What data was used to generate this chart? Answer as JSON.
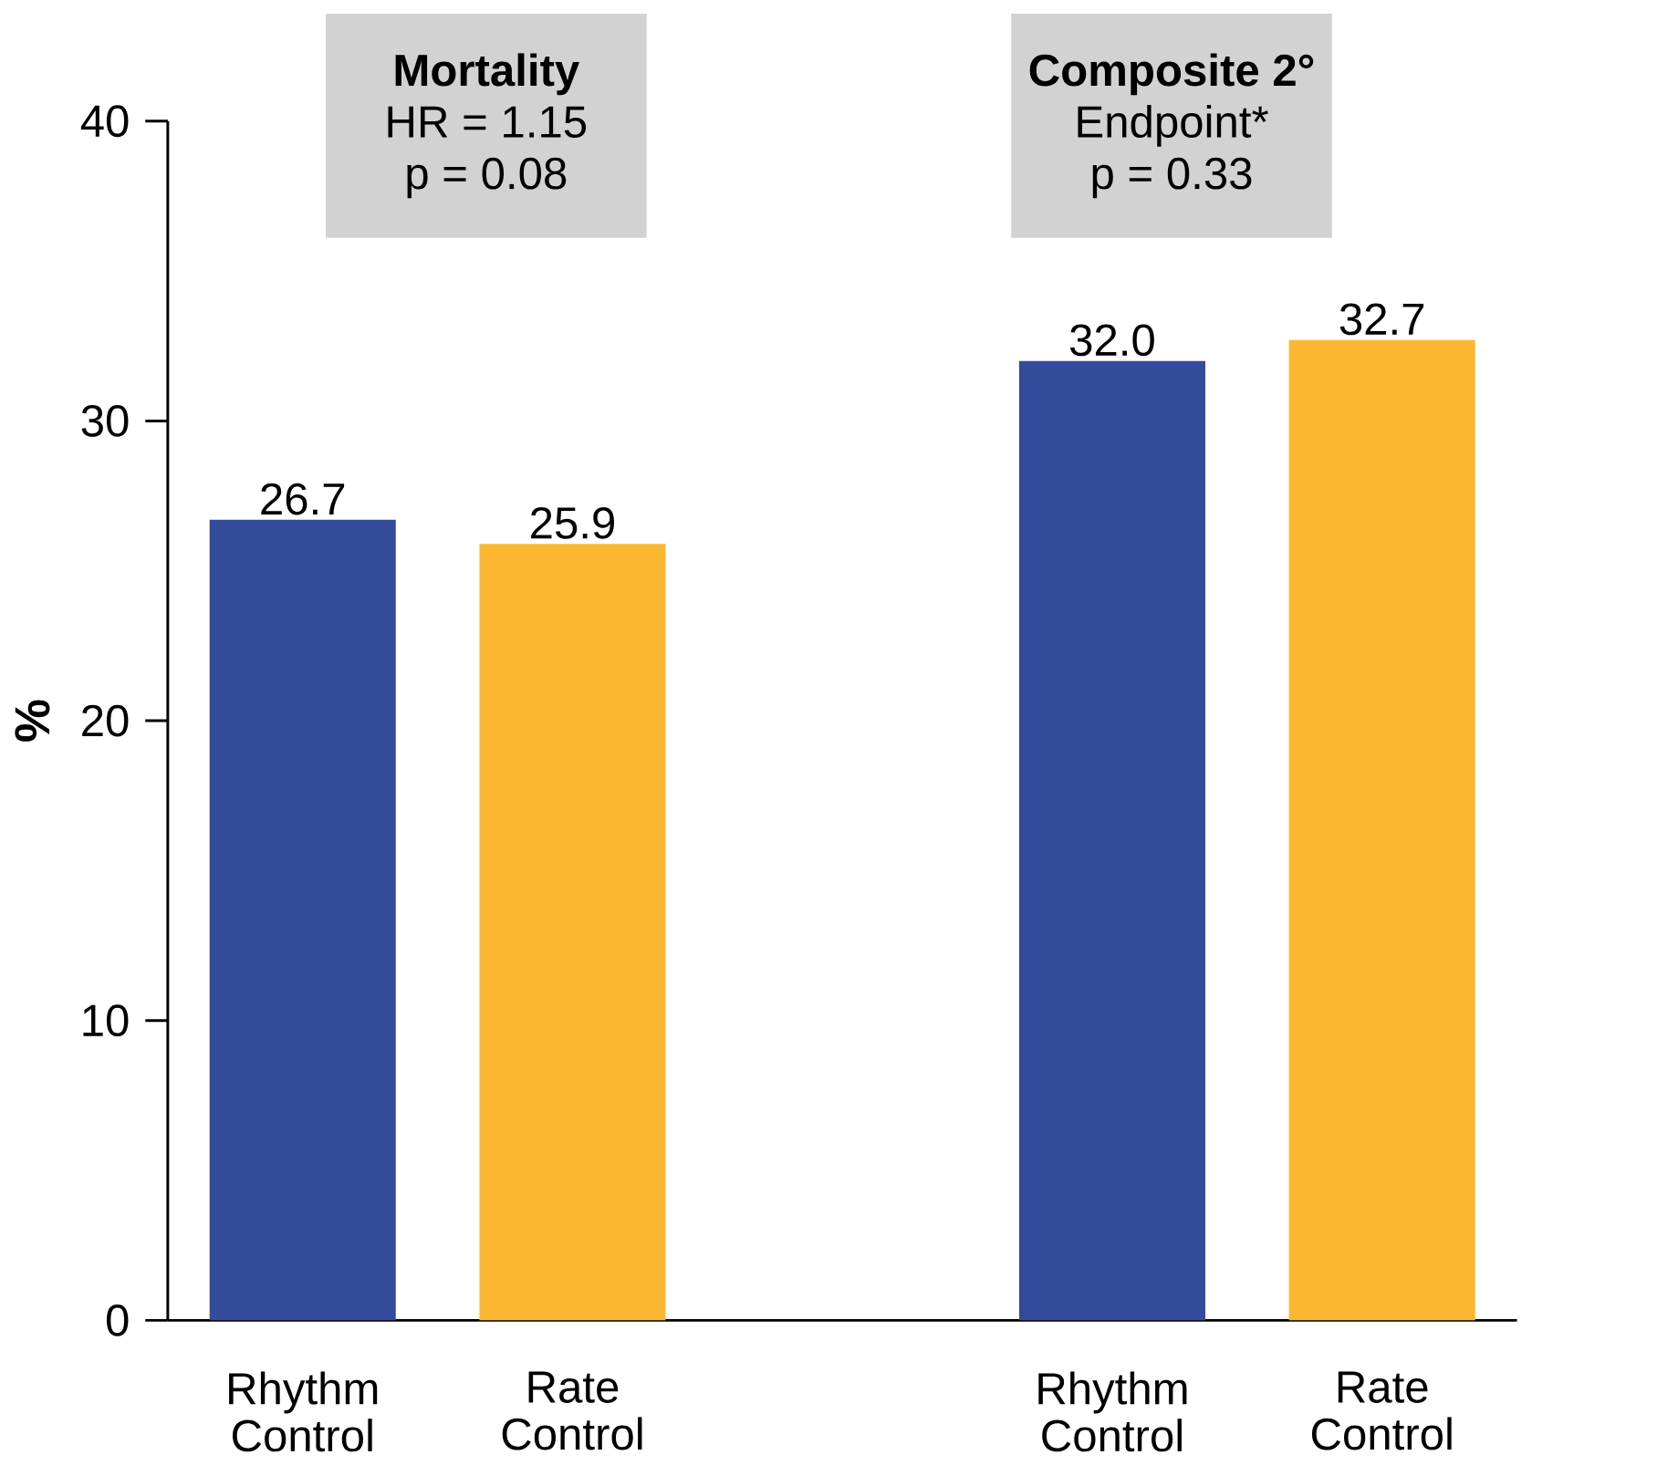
{
  "chart_data": {
    "type": "bar",
    "categories": [
      "Rhythm Control",
      "Rate Control",
      null,
      "Rhythm Control",
      "Rate Control"
    ],
    "values": [
      26.7,
      25.9,
      null,
      32.0,
      32.7
    ],
    "colors": [
      "#344a9a",
      "#fbb731",
      "#ffffff",
      "#344a9a",
      "#fbb731"
    ],
    "ylabel": "%",
    "ylim": [
      0,
      40
    ],
    "yticks": [
      0,
      10,
      20,
      30,
      40
    ],
    "value_labels": [
      "26.7",
      "25.9",
      null,
      "32.0",
      "32.7"
    ],
    "grid": false,
    "annotations": [
      "Mortality",
      "HR = 1.15",
      "p = 0.08",
      "Composite 2°",
      "Endpoint*",
      "p = 0.33"
    ]
  }
}
